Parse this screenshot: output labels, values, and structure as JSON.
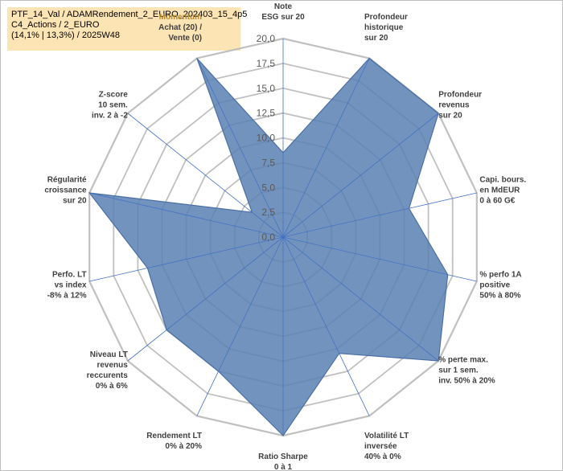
{
  "chart_data": {
    "type": "radar",
    "title_lines": [
      "PTF_14_Val / ADAMRendement_2_EURO_202403_15_4p5",
      "C4_Actions / 2_EURO",
      "(14,1% | 13,3%) / 2025W48"
    ],
    "rmin": 0,
    "rmax": 20,
    "tick_values": [
      0,
      2.5,
      5,
      7.5,
      10,
      12.5,
      15,
      17.5,
      20
    ],
    "tick_labels": [
      "0,0",
      "2,5",
      "5,0",
      "7,5",
      "10,0",
      "12,5",
      "15,0",
      "17,5",
      "20,0"
    ],
    "axes": [
      {
        "label": [
          "Note",
          "ESG sur 20"
        ]
      },
      {
        "label": [
          "Profondeur",
          "historique",
          "sur 20"
        ]
      },
      {
        "label": [
          "Profondeur",
          "revenus",
          "sur 20"
        ]
      },
      {
        "label": [
          "Capi. bours.",
          "en MdEUR",
          "0 à 60 G€"
        ]
      },
      {
        "label": [
          "% perfo 1A",
          "positive",
          "50% à 80%"
        ]
      },
      {
        "label": [
          "% perte max.",
          "sur 1 sem.",
          "inv. 50% à 20%"
        ]
      },
      {
        "label": [
          "Volatilité LT",
          "inversée",
          "40% à 0%"
        ]
      },
      {
        "label": [
          "Ratio Sharpe",
          "0 à 1"
        ]
      },
      {
        "label": [
          "Rendement LT",
          "0% à 20%"
        ]
      },
      {
        "label": [
          "Niveau LT",
          "revenus",
          "reccurents",
          "0% à 6%"
        ]
      },
      {
        "label": [
          "Perfo. LT",
          "vs index",
          "-8% à 12%"
        ]
      },
      {
        "label": [
          "Régularité",
          "croissance",
          "sur 20"
        ]
      },
      {
        "label": [
          "Z-score",
          "10 sem.",
          "inv. 2 à -2"
        ]
      },
      {
        "label": [
          "Momentum",
          "Achat (20) /",
          "Vente (0)"
        ]
      }
    ],
    "series": [
      {
        "name": "PTF_14_Val",
        "values": [
          8.5,
          20,
          20,
          13,
          17,
          20,
          13,
          20,
          15,
          15,
          14,
          20,
          4,
          20
        ]
      }
    ]
  },
  "colors": {
    "fill": "#5b80b4",
    "stroke": "#4a6fa5",
    "grid": "#c0c0c0",
    "spoke": "#4472c4",
    "legend_bg": "#fce4b4",
    "momentum_label": "#b38a2e"
  }
}
